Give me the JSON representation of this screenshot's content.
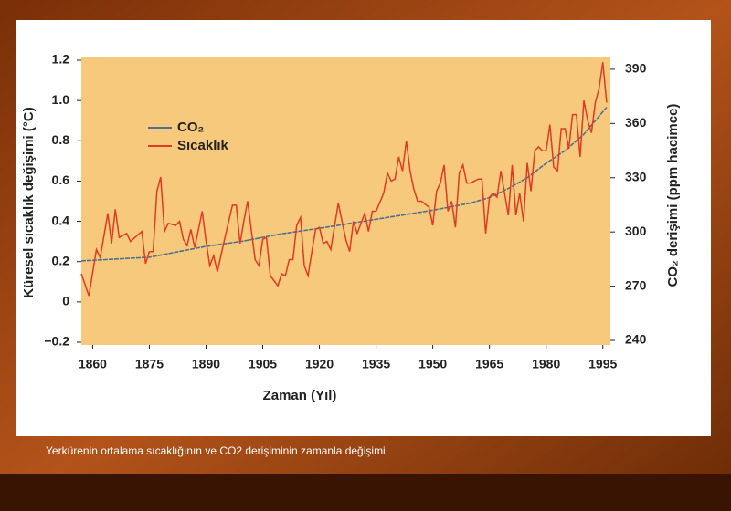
{
  "chart_data": {
    "type": "line",
    "caption": "Yerkürenin ortalama sıcaklığının ve CO2 derişiminin zamanla değişimi",
    "x_label": "Zaman (Yıl)",
    "y_label": "Küresel sıcaklık değişimi (°C)",
    "y2_label": "CO₂ derişimi (ppm hacimce)",
    "xlim": [
      1857,
      1997
    ],
    "xticks": [
      1860,
      1875,
      1890,
      1905,
      1920,
      1935,
      1950,
      1965,
      1980,
      1995
    ],
    "ylim": [
      -0.2,
      1.2
    ],
    "yticks": [
      {
        "value": -0.2,
        "label": "−0.2"
      },
      0,
      0.2,
      0.4,
      0.6,
      0.8,
      {
        "value": 1,
        "label": "1.0"
      },
      1.2
    ],
    "y2lim": [
      239,
      395
    ],
    "y2ticks": [
      240,
      270,
      300,
      330,
      360,
      390
    ],
    "legend": "upper left",
    "series": [
      {
        "name": "CO₂",
        "color": "#4f6f8f",
        "axis": "y2",
        "x": [
          1857,
          1875,
          1890,
          1900,
          1910,
          1920,
          1935,
          1950,
          1960,
          1965,
          1970,
          1975,
          1980,
          1985,
          1990,
          1996
        ],
        "values": [
          284,
          286,
          292,
          295,
          299,
          302,
          307,
          312,
          316,
          319,
          324,
          330,
          338,
          345,
          354,
          369
        ]
      },
      {
        "name": "Sıcaklık",
        "color": "#e23a22",
        "x": [
          1857,
          1859,
          1861,
          1862,
          1864,
          1865,
          1866,
          1867,
          1869,
          1870,
          1873,
          1874,
          1875,
          1876,
          1877,
          1878,
          1879,
          1880,
          1882,
          1883,
          1884,
          1885,
          1886,
          1887,
          1889,
          1890,
          1891,
          1892,
          1893,
          1895,
          1897,
          1898,
          1899,
          1900,
          1901,
          1903,
          1904,
          1905,
          1906,
          1907,
          1909,
          1910,
          1911,
          1912,
          1913,
          1914,
          1915,
          1916,
          1917,
          1918,
          1919,
          1920,
          1921,
          1922,
          1923,
          1925,
          1927,
          1928,
          1929,
          1930,
          1932,
          1933,
          1934,
          1935,
          1937,
          1938,
          1939,
          1940,
          1941,
          1942,
          1943,
          1944,
          1945,
          1946,
          1947,
          1949,
          1950,
          1951,
          1952,
          1953,
          1954,
          1955,
          1956,
          1957,
          1958,
          1959,
          1960,
          1962,
          1963,
          1964,
          1965,
          1966,
          1967,
          1968,
          1969,
          1970,
          1971,
          1972,
          1973,
          1974,
          1975,
          1976,
          1977,
          1978,
          1979,
          1980,
          1981,
          1982,
          1983,
          1984,
          1985,
          1986,
          1987,
          1988,
          1989,
          1990,
          1991,
          1992,
          1993,
          1994,
          1995,
          1996
        ],
        "values": [
          0.14,
          0.03,
          0.26,
          0.22,
          0.44,
          0.29,
          0.46,
          0.32,
          0.34,
          0.3,
          0.35,
          0.19,
          0.25,
          0.25,
          0.55,
          0.62,
          0.35,
          0.39,
          0.38,
          0.4,
          0.31,
          0.28,
          0.36,
          0.27,
          0.45,
          0.3,
          0.18,
          0.23,
          0.15,
          0.32,
          0.48,
          0.48,
          0.29,
          0.4,
          0.5,
          0.21,
          0.18,
          0.31,
          0.32,
          0.13,
          0.08,
          0.14,
          0.13,
          0.21,
          0.21,
          0.38,
          0.42,
          0.18,
          0.13,
          0.25,
          0.36,
          0.37,
          0.29,
          0.3,
          0.26,
          0.49,
          0.31,
          0.25,
          0.4,
          0.34,
          0.44,
          0.35,
          0.45,
          0.45,
          0.54,
          0.64,
          0.6,
          0.61,
          0.72,
          0.65,
          0.8,
          0.65,
          0.56,
          0.5,
          0.5,
          0.47,
          0.38,
          0.55,
          0.59,
          0.68,
          0.45,
          0.5,
          0.37,
          0.64,
          0.68,
          0.59,
          0.59,
          0.61,
          0.61,
          0.34,
          0.52,
          0.54,
          0.52,
          0.65,
          0.54,
          0.43,
          0.68,
          0.43,
          0.54,
          0.4,
          0.69,
          0.55,
          0.75,
          0.77,
          0.75,
          0.75,
          0.88,
          0.67,
          0.65,
          0.86,
          0.86,
          0.76,
          0.93,
          0.93,
          0.72,
          1.0,
          0.9,
          0.84,
          0.99,
          1.06,
          1.19,
          0.99
        ]
      }
    ]
  }
}
